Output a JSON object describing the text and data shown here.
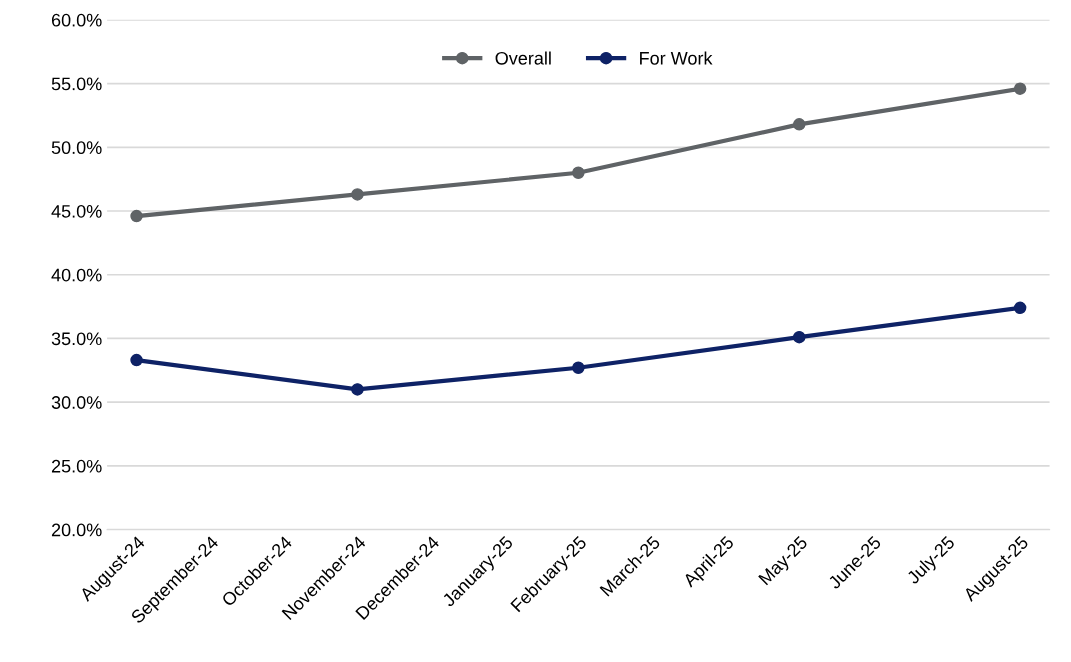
{
  "chart_data": {
    "type": "line",
    "categories": [
      "August-24",
      "September-24",
      "October-24",
      "November-24",
      "December-24",
      "January-25",
      "February-25",
      "March-25",
      "April-25",
      "May-25",
      "June-25",
      "July-25",
      "August-25"
    ],
    "series": [
      {
        "name": "Overall",
        "color": "#5f6366",
        "values": [
          44.6,
          null,
          null,
          46.3,
          null,
          null,
          48.0,
          null,
          null,
          51.8,
          null,
          null,
          54.6
        ]
      },
      {
        "name": "For Work",
        "color": "#0e2266",
        "values": [
          33.3,
          null,
          null,
          31.0,
          null,
          null,
          32.7,
          null,
          null,
          35.1,
          null,
          null,
          37.4
        ]
      }
    ],
    "ylim": [
      20,
      60
    ],
    "yticks": [
      {
        "value": 20,
        "label": "20.0%"
      },
      {
        "value": 25,
        "label": "25.0%"
      },
      {
        "value": 30,
        "label": "30.0%"
      },
      {
        "value": 35,
        "label": "35.0%"
      },
      {
        "value": 40,
        "label": "40.0%"
      },
      {
        "value": 45,
        "label": "45.0%"
      },
      {
        "value": 50,
        "label": "50.0%"
      },
      {
        "value": 55,
        "label": "55.0%"
      },
      {
        "value": 60,
        "label": "60.0%"
      }
    ],
    "grid": "y",
    "legend": "top",
    "marker": "circle",
    "line_style": "solid"
  }
}
